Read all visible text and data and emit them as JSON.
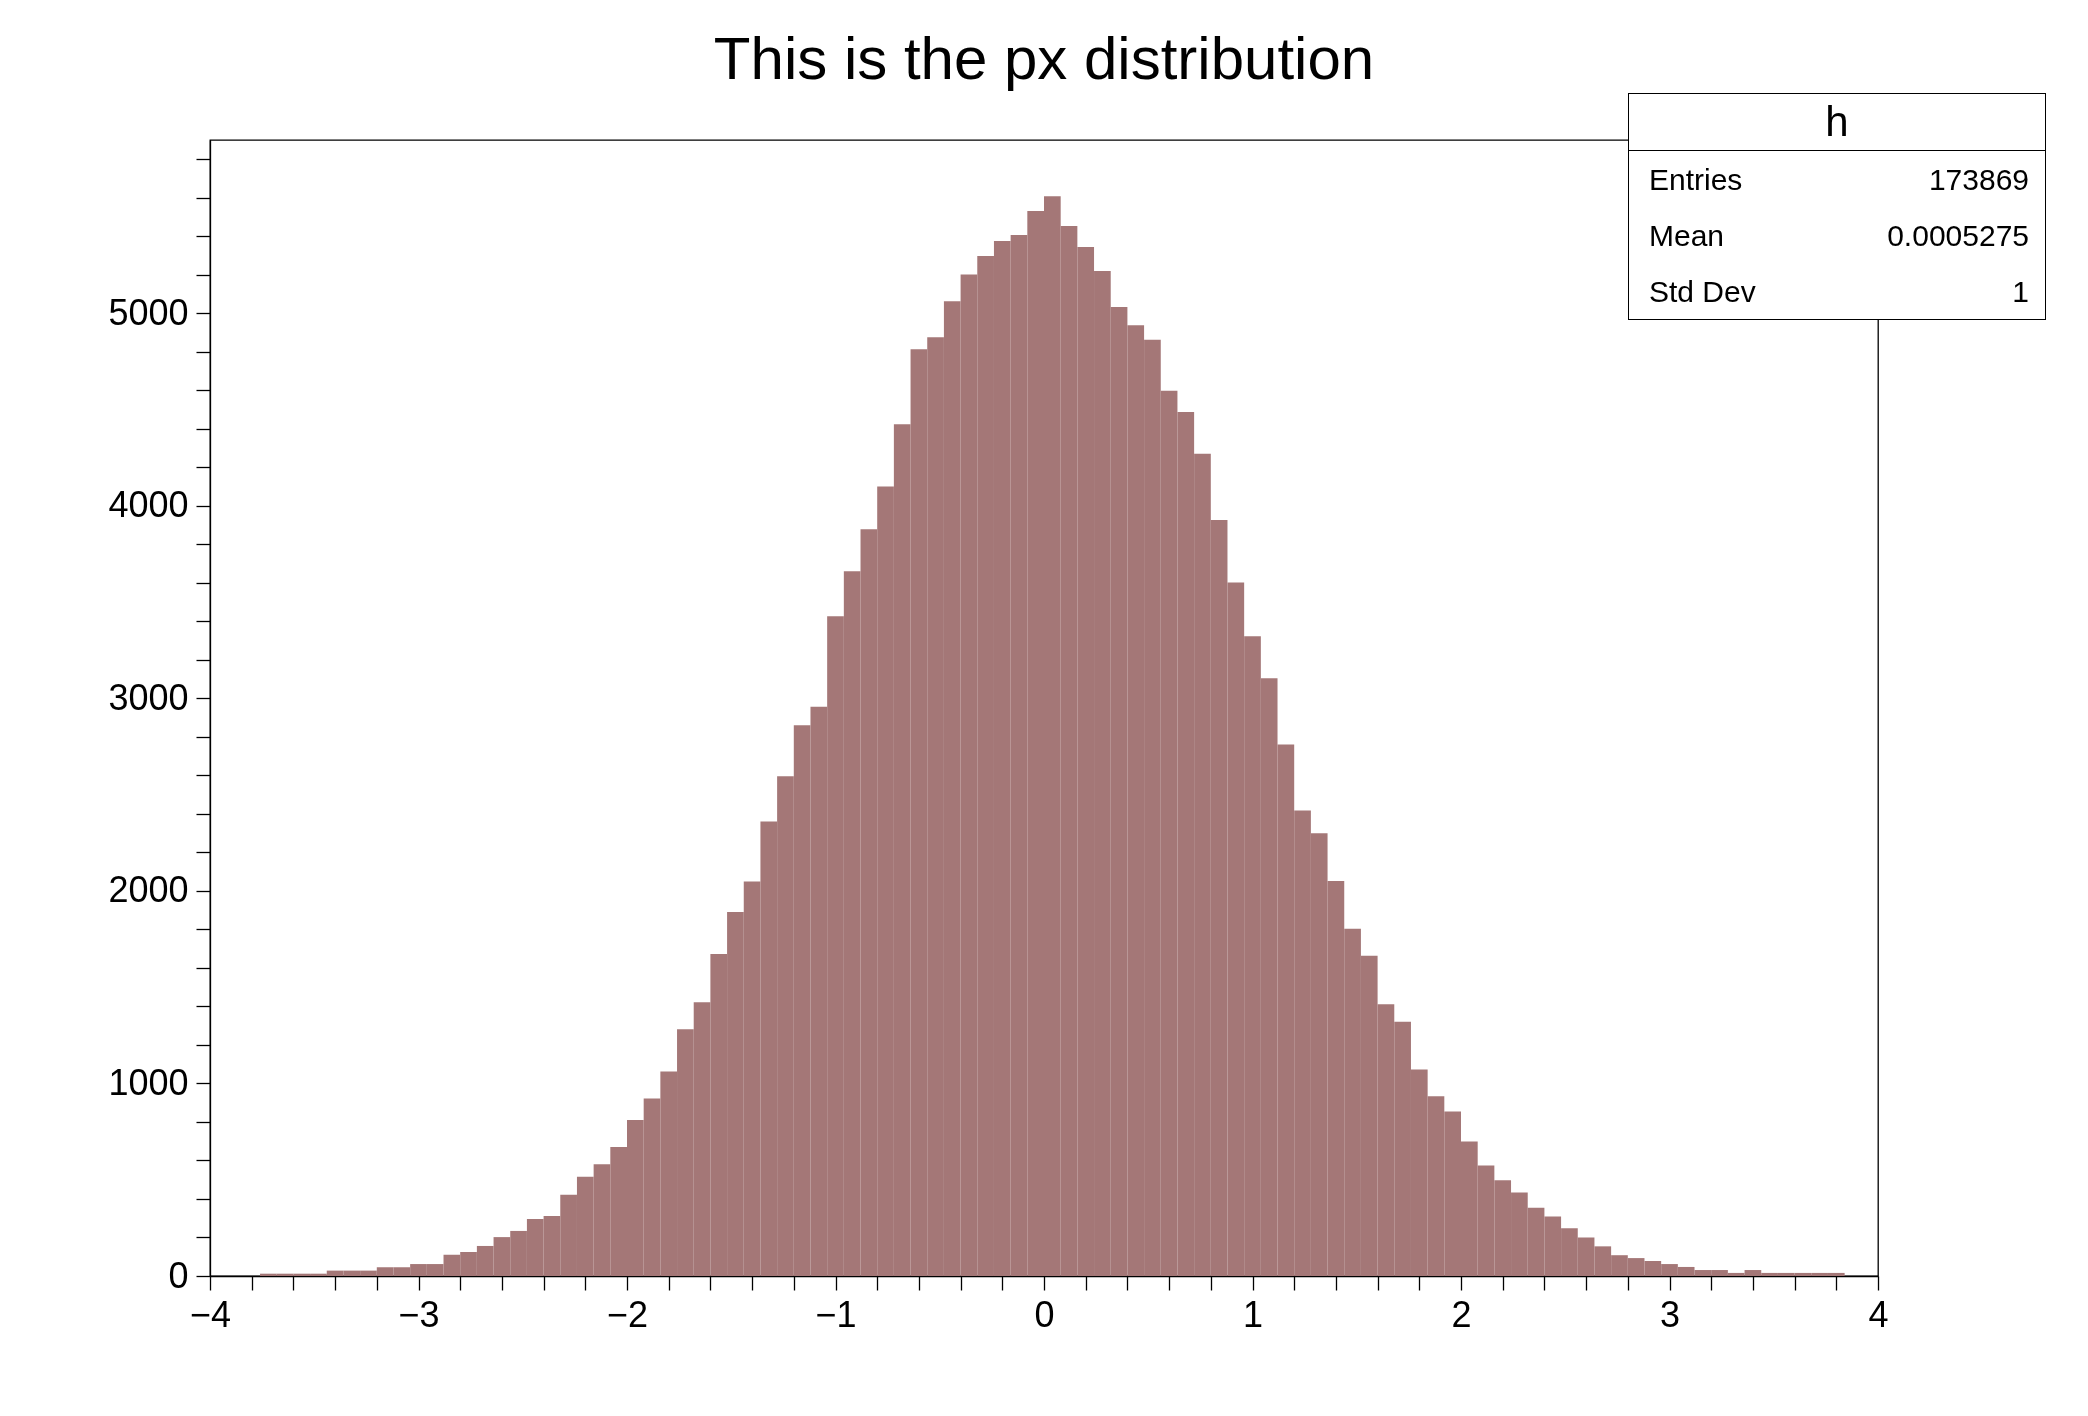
{
  "chart_data": {
    "type": "histogram",
    "title": "This is the px distribution",
    "bins": [
      -4,
      -3.92,
      -3.84,
      -3.76,
      -3.68,
      -3.6,
      -3.52,
      -3.44,
      -3.36,
      -3.28,
      -3.2,
      -3.12,
      -3.04,
      -2.96,
      -2.88,
      -2.8,
      -2.72,
      -2.64,
      -2.56,
      -2.48,
      -2.4,
      -2.32,
      -2.24,
      -2.16,
      -2.08,
      -2,
      -1.92,
      -1.84,
      -1.76,
      -1.68,
      -1.6,
      -1.52,
      -1.44,
      -1.36,
      -1.28,
      -1.2,
      -1.12,
      -1.04,
      -0.96,
      -0.88,
      -0.8,
      -0.72,
      -0.64,
      -0.56,
      -0.48,
      -0.4,
      -0.32,
      -0.24,
      -0.16,
      -0.08,
      0,
      0.08,
      0.16,
      0.24,
      0.32,
      0.4,
      0.48,
      0.56,
      0.64,
      0.72,
      0.8,
      0.88,
      0.96,
      1.04,
      1.12,
      1.2,
      1.28,
      1.36,
      1.44,
      1.52,
      1.6,
      1.68,
      1.76,
      1.84,
      1.92,
      2,
      2.08,
      2.16,
      2.24,
      2.32,
      2.4,
      2.48,
      2.56,
      2.64,
      2.72,
      2.8,
      2.88,
      2.96,
      3.04,
      3.12,
      3.2,
      3.28,
      3.36,
      3.44,
      3.52,
      3.6,
      3.68,
      3.76,
      3.84,
      3.92,
      4
    ],
    "values": [
      0,
      0,
      0,
      12,
      12,
      12,
      12,
      28,
      28,
      28,
      46,
      46,
      62,
      62,
      110,
      124,
      156,
      202,
      234,
      296,
      312,
      422,
      516,
      580,
      670,
      810,
      922,
      1062,
      1282,
      1422,
      1673,
      1891,
      2049,
      2360,
      2595,
      2861,
      2957,
      3426,
      3660,
      3879,
      4100,
      4424,
      4813,
      4876,
      5063,
      5202,
      5297,
      5376,
      5406,
      5531,
      5608,
      5453,
      5344,
      5219,
      5033,
      4938,
      4862,
      4598,
      4487,
      4271,
      3926,
      3602,
      3322,
      3104,
      2761,
      2418,
      2300,
      2052,
      1803,
      1663,
      1411,
      1320,
      1073,
      933,
      855,
      699,
      574,
      497,
      434,
      355,
      309,
      248,
      200,
      154,
      108,
      93,
      78,
      62,
      47,
      31,
      31,
      16,
      31,
      16,
      16,
      16,
      16,
      16,
      0,
      0
    ],
    "color": "#a47777",
    "xlim": [
      -4,
      4
    ],
    "xticks": [
      {
        "value": -4,
        "label": "−4"
      },
      {
        "value": -3.8,
        "label": null
      },
      {
        "value": -3.6,
        "label": null
      },
      {
        "value": -3.4,
        "label": null
      },
      {
        "value": -3.2,
        "label": null
      },
      {
        "value": -3,
        "label": "−3"
      },
      {
        "value": -2.8,
        "label": null
      },
      {
        "value": -2.6,
        "label": null
      },
      {
        "value": -2.4,
        "label": null
      },
      {
        "value": -2.2,
        "label": null
      },
      {
        "value": -2,
        "label": "−2"
      },
      {
        "value": -1.8,
        "label": null
      },
      {
        "value": -1.6,
        "label": null
      },
      {
        "value": -1.4,
        "label": null
      },
      {
        "value": -1.2,
        "label": null
      },
      {
        "value": -1,
        "label": "−1"
      },
      {
        "value": -0.8,
        "label": null
      },
      {
        "value": -0.6,
        "label": null
      },
      {
        "value": -0.4,
        "label": null
      },
      {
        "value": -0.2,
        "label": null
      },
      0,
      {
        "value": 0.2,
        "label": null
      },
      {
        "value": 0.4,
        "label": null
      },
      {
        "value": 0.6,
        "label": null
      },
      {
        "value": 0.8,
        "label": null
      },
      1,
      {
        "value": 1.2,
        "label": null
      },
      {
        "value": 1.4,
        "label": null
      },
      {
        "value": 1.6,
        "label": null
      },
      {
        "value": 1.8,
        "label": null
      },
      2,
      {
        "value": 2.2,
        "label": null
      },
      {
        "value": 2.4,
        "label": null
      },
      {
        "value": 2.6,
        "label": null
      },
      {
        "value": 2.8,
        "label": null
      },
      3,
      {
        "value": 3.2,
        "label": null
      },
      {
        "value": 3.4,
        "label": null
      },
      {
        "value": 3.6,
        "label": null
      },
      {
        "value": 3.8,
        "label": null
      },
      4
    ],
    "ylim": [
      0,
      5900
    ],
    "yticks": [
      0,
      {
        "value": 200,
        "label": null
      },
      {
        "value": 400,
        "label": null
      },
      {
        "value": 600,
        "label": null
      },
      {
        "value": 800,
        "label": null
      },
      1000,
      {
        "value": 1200,
        "label": null
      },
      {
        "value": 1400,
        "label": null
      },
      {
        "value": 1600,
        "label": null
      },
      {
        "value": 1800,
        "label": null
      },
      2000,
      {
        "value": 2200,
        "label": null
      },
      {
        "value": 2400,
        "label": null
      },
      {
        "value": 2600,
        "label": null
      },
      {
        "value": 2800,
        "label": null
      },
      3000,
      {
        "value": 3200,
        "label": null
      },
      {
        "value": 3400,
        "label": null
      },
      {
        "value": 3600,
        "label": null
      },
      {
        "value": 3800,
        "label": null
      },
      4000,
      {
        "value": 4200,
        "label": null
      },
      {
        "value": 4400,
        "label": null
      },
      {
        "value": 4600,
        "label": null
      },
      {
        "value": 4800,
        "label": null
      },
      5000,
      {
        "value": 5200,
        "label": null
      },
      {
        "value": 5400,
        "label": null
      },
      {
        "value": 5600,
        "label": null
      },
      {
        "value": 5800,
        "label": null
      }
    ],
    "annotations": [
      "h",
      "Entries",
      "173869",
      "Mean",
      "0.0005275",
      "Std Dev",
      "1"
    ]
  }
}
